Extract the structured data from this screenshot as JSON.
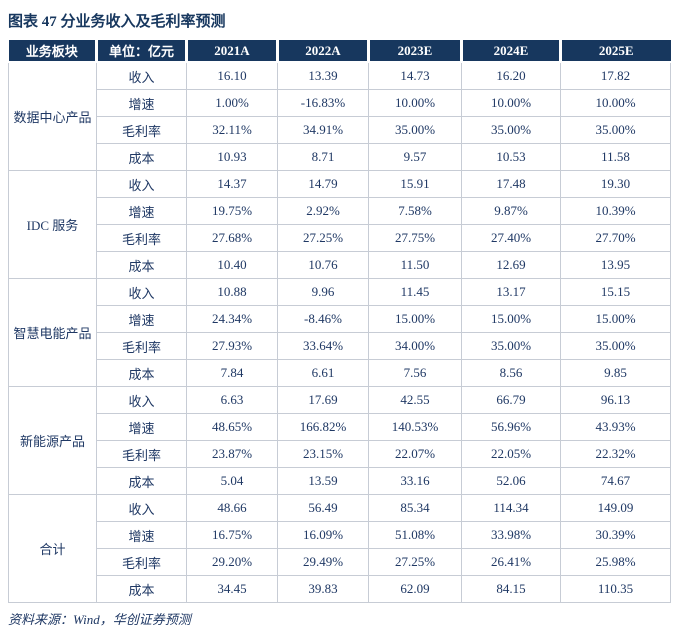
{
  "colors": {
    "header_bg": "#17375E",
    "header_text": "#FFFFFF",
    "body_text": "#1F3864",
    "border": "#C7CCD5",
    "title_text": "#17375E"
  },
  "chart_data": {
    "type": "table",
    "title": "图表 47 分业务收入及毛利率预测",
    "source": "资料来源：Wind，华创证券预测",
    "columns": [
      "业务板块",
      "单位：亿元",
      "2021A",
      "2022A",
      "2023E",
      "2024E",
      "2025E"
    ],
    "groups": [
      {
        "name": "数据中心产品",
        "rows": [
          {
            "label": "收入",
            "values": [
              "16.10",
              "13.39",
              "14.73",
              "16.20",
              "17.82"
            ]
          },
          {
            "label": "增速",
            "values": [
              "1.00%",
              "-16.83%",
              "10.00%",
              "10.00%",
              "10.00%"
            ]
          },
          {
            "label": "毛利率",
            "values": [
              "32.11%",
              "34.91%",
              "35.00%",
              "35.00%",
              "35.00%"
            ]
          },
          {
            "label": "成本",
            "values": [
              "10.93",
              "8.71",
              "9.57",
              "10.53",
              "11.58"
            ]
          }
        ]
      },
      {
        "name": "IDC 服务",
        "rows": [
          {
            "label": "收入",
            "values": [
              "14.37",
              "14.79",
              "15.91",
              "17.48",
              "19.30"
            ]
          },
          {
            "label": "增速",
            "values": [
              "19.75%",
              "2.92%",
              "7.58%",
              "9.87%",
              "10.39%"
            ]
          },
          {
            "label": "毛利率",
            "values": [
              "27.68%",
              "27.25%",
              "27.75%",
              "27.40%",
              "27.70%"
            ]
          },
          {
            "label": "成本",
            "values": [
              "10.40",
              "10.76",
              "11.50",
              "12.69",
              "13.95"
            ]
          }
        ]
      },
      {
        "name": "智慧电能产品",
        "rows": [
          {
            "label": "收入",
            "values": [
              "10.88",
              "9.96",
              "11.45",
              "13.17",
              "15.15"
            ]
          },
          {
            "label": "增速",
            "values": [
              "24.34%",
              "-8.46%",
              "15.00%",
              "15.00%",
              "15.00%"
            ]
          },
          {
            "label": "毛利率",
            "values": [
              "27.93%",
              "33.64%",
              "34.00%",
              "35.00%",
              "35.00%"
            ]
          },
          {
            "label": "成本",
            "values": [
              "7.84",
              "6.61",
              "7.56",
              "8.56",
              "9.85"
            ]
          }
        ]
      },
      {
        "name": "新能源产品",
        "rows": [
          {
            "label": "收入",
            "values": [
              "6.63",
              "17.69",
              "42.55",
              "66.79",
              "96.13"
            ]
          },
          {
            "label": "增速",
            "values": [
              "48.65%",
              "166.82%",
              "140.53%",
              "56.96%",
              "43.93%"
            ]
          },
          {
            "label": "毛利率",
            "values": [
              "23.87%",
              "23.15%",
              "22.07%",
              "22.05%",
              "22.32%"
            ]
          },
          {
            "label": "成本",
            "values": [
              "5.04",
              "13.59",
              "33.16",
              "52.06",
              "74.67"
            ]
          }
        ]
      },
      {
        "name": "合计",
        "rows": [
          {
            "label": "收入",
            "values": [
              "48.66",
              "56.49",
              "85.34",
              "114.34",
              "149.09"
            ]
          },
          {
            "label": "增速",
            "values": [
              "16.75%",
              "16.09%",
              "51.08%",
              "33.98%",
              "30.39%"
            ]
          },
          {
            "label": "毛利率",
            "values": [
              "29.20%",
              "29.49%",
              "27.25%",
              "26.41%",
              "25.98%"
            ]
          },
          {
            "label": "成本",
            "values": [
              "34.45",
              "39.83",
              "62.09",
              "84.15",
              "110.35"
            ]
          }
        ]
      }
    ]
  }
}
